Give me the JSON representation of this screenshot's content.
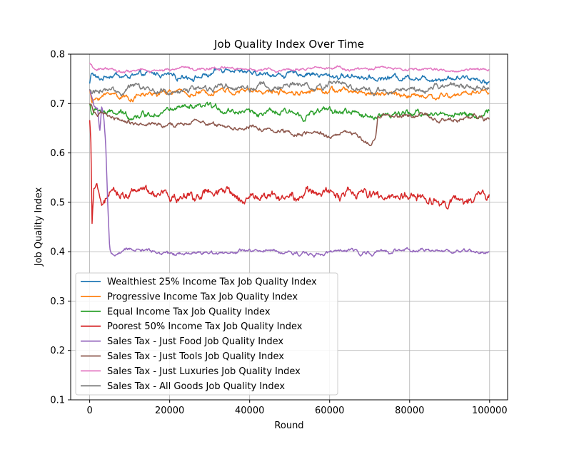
{
  "chart_data": {
    "type": "line",
    "title": "Job Quality Index Over Time",
    "xlabel": "Round",
    "ylabel": "Job Quality Index",
    "xlim": [
      -4750,
      104500
    ],
    "ylim": [
      0.1,
      0.8
    ],
    "xticks": [
      0,
      20000,
      40000,
      60000,
      80000,
      100000
    ],
    "yticks": [
      0.1,
      0.2,
      0.3,
      0.4,
      0.5,
      0.6,
      0.7,
      0.8
    ],
    "xtick_labels": [
      "0",
      "20000",
      "40000",
      "60000",
      "80000",
      "100000"
    ],
    "ytick_labels": [
      "0.1",
      "0.2",
      "0.3",
      "0.4",
      "0.5",
      "0.6",
      "0.7",
      "0.8"
    ],
    "grid": true,
    "legend_position": "lower-left",
    "series": [
      {
        "name": "Wealthiest 25% Income Tax Job Quality Index",
        "color": "#1f77b4",
        "noise": 0.007,
        "x": [
          0,
          500,
          1500,
          2500,
          5000,
          10000,
          20000,
          30000,
          35000,
          40000,
          50000,
          60000,
          70000,
          80000,
          90000,
          100000
        ],
        "y": [
          0.74,
          0.765,
          0.755,
          0.75,
          0.758,
          0.755,
          0.76,
          0.757,
          0.77,
          0.755,
          0.758,
          0.757,
          0.755,
          0.757,
          0.755,
          0.75
        ]
      },
      {
        "name": "Progressive Income Tax Job Quality Index",
        "color": "#ff7f0e",
        "noise": 0.007,
        "x": [
          0,
          500,
          2000,
          5000,
          10000,
          20000,
          30000,
          40000,
          50000,
          60000,
          70000,
          80000,
          90000,
          100000
        ],
        "y": [
          0.73,
          0.7,
          0.71,
          0.72,
          0.715,
          0.72,
          0.718,
          0.72,
          0.72,
          0.722,
          0.72,
          0.72,
          0.718,
          0.72
        ]
      },
      {
        "name": "Equal Income Tax Job Quality Index",
        "color": "#2ca02c",
        "noise": 0.008,
        "x": [
          0,
          500,
          2000,
          5000,
          10000,
          20000,
          30000,
          40000,
          50000,
          60000,
          70000,
          80000,
          90000,
          100000
        ],
        "y": [
          0.7,
          0.68,
          0.685,
          0.68,
          0.675,
          0.685,
          0.685,
          0.68,
          0.68,
          0.685,
          0.68,
          0.68,
          0.68,
          0.68
        ]
      },
      {
        "name": "Poorest 50% Income Tax Job Quality Index",
        "color": "#d62728",
        "noise": 0.012,
        "x": [
          0,
          300,
          600,
          1000,
          2000,
          3000,
          4000,
          6000,
          10000,
          20000,
          30000,
          40000,
          50000,
          60000,
          70000,
          80000,
          90000,
          100000
        ],
        "y": [
          0.665,
          0.62,
          0.455,
          0.52,
          0.515,
          0.5,
          0.5,
          0.51,
          0.52,
          0.51,
          0.52,
          0.51,
          0.515,
          0.515,
          0.51,
          0.52,
          0.51,
          0.51
        ]
      },
      {
        "name": "Sales Tax - Just Food Job Quality Index",
        "color": "#9467bd",
        "noise": 0.005,
        "x": [
          0,
          1000,
          2000,
          2500,
          3000,
          3500,
          4000,
          4500,
          5000,
          6000,
          10000,
          20000,
          30000,
          40000,
          50000,
          60000,
          70000,
          80000,
          90000,
          100000
        ],
        "y": [
          0.73,
          0.7,
          0.69,
          0.64,
          0.69,
          0.67,
          0.62,
          0.5,
          0.4,
          0.39,
          0.4,
          0.4,
          0.4,
          0.4,
          0.4,
          0.4,
          0.4,
          0.4,
          0.4,
          0.4
        ]
      },
      {
        "name": "Sales Tax - Just Tools Job Quality Index",
        "color": "#8c564b",
        "noise": 0.006,
        "x": [
          0,
          2000,
          5000,
          10000,
          20000,
          30000,
          40000,
          50000,
          60000,
          65000,
          70000,
          71500,
          72000,
          75000,
          80000,
          90000,
          100000
        ],
        "y": [
          0.7,
          0.68,
          0.675,
          0.66,
          0.655,
          0.66,
          0.65,
          0.645,
          0.635,
          0.64,
          0.615,
          0.63,
          0.675,
          0.68,
          0.675,
          0.675,
          0.67
        ]
      },
      {
        "name": "Sales Tax - Just Luxuries Job Quality Index",
        "color": "#e377c2",
        "noise": 0.004,
        "x": [
          0,
          1000,
          3000,
          10000,
          20000,
          30000,
          40000,
          50000,
          60000,
          70000,
          80000,
          90000,
          100000
        ],
        "y": [
          0.78,
          0.77,
          0.772,
          0.768,
          0.768,
          0.77,
          0.768,
          0.768,
          0.77,
          0.768,
          0.768,
          0.768,
          0.768
        ]
      },
      {
        "name": "Sales Tax - All Goods Job Quality Index",
        "color": "#7f7f7f",
        "noise": 0.008,
        "x": [
          0,
          500,
          2000,
          5000,
          10000,
          20000,
          30000,
          40000,
          50000,
          60000,
          70000,
          80000,
          90000,
          100000
        ],
        "y": [
          0.73,
          0.72,
          0.73,
          0.725,
          0.73,
          0.73,
          0.735,
          0.73,
          0.735,
          0.74,
          0.73,
          0.735,
          0.73,
          0.735
        ]
      }
    ]
  }
}
